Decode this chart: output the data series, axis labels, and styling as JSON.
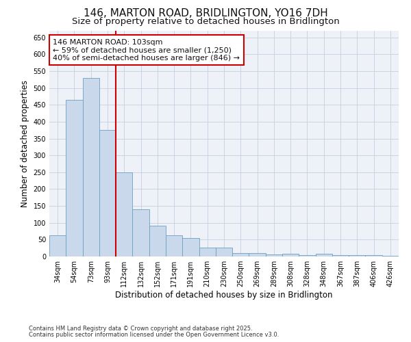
{
  "title": "146, MARTON ROAD, BRIDLINGTON, YO16 7DH",
  "subtitle": "Size of property relative to detached houses in Bridlington",
  "xlabel": "Distribution of detached houses by size in Bridlington",
  "ylabel": "Number of detached properties",
  "categories": [
    "34sqm",
    "54sqm",
    "73sqm",
    "93sqm",
    "112sqm",
    "132sqm",
    "152sqm",
    "171sqm",
    "191sqm",
    "210sqm",
    "230sqm",
    "250sqm",
    "269sqm",
    "289sqm",
    "308sqm",
    "328sqm",
    "348sqm",
    "367sqm",
    "387sqm",
    "406sqm",
    "426sqm"
  ],
  "values": [
    62,
    465,
    530,
    375,
    250,
    140,
    92,
    62,
    55,
    26,
    26,
    11,
    11,
    6,
    8,
    5,
    9,
    5,
    5,
    4,
    3
  ],
  "bar_color": "#c9d9eb",
  "bar_edge_color": "#6a9fc0",
  "vline_index": 3,
  "vline_color": "#cc0000",
  "annotation_line1": "146 MARTON ROAD: 103sqm",
  "annotation_line2": "← 59% of detached houses are smaller (1,250)",
  "annotation_line3": "40% of semi-detached houses are larger (846) →",
  "annotation_box_color": "#cc0000",
  "ylim": [
    0,
    670
  ],
  "yticks": [
    0,
    50,
    100,
    150,
    200,
    250,
    300,
    350,
    400,
    450,
    500,
    550,
    600,
    650
  ],
  "footer_line1": "Contains HM Land Registry data © Crown copyright and database right 2025.",
  "footer_line2": "Contains public sector information licensed under the Open Government Licence v3.0.",
  "bg_color": "#eef2f8",
  "grid_color": "#c5cfe0",
  "title_fontsize": 11,
  "subtitle_fontsize": 9.5,
  "tick_fontsize": 7,
  "ylabel_fontsize": 8.5,
  "xlabel_fontsize": 8.5,
  "footer_fontsize": 6,
  "annotation_fontsize": 8
}
